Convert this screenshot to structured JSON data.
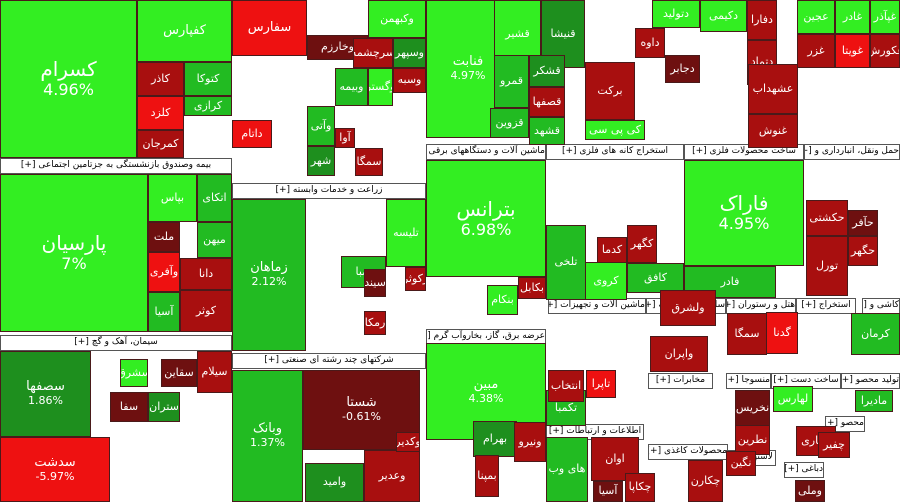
{
  "palette": {
    "up_strong": "#33ee22",
    "up": "#22bb22",
    "up_dim": "#1e8f1e",
    "flat": "#3a2a2a",
    "down_dim": "#6e1010",
    "down": "#a80f0f",
    "down_strong": "#ee1111"
  },
  "sectors": [
    {
      "label": "بیمه وصندوق بازنشستگی به جزتامین اجتماعی [+]"
    },
    {
      "label": "زراعت و خدمات وابسته [+]"
    },
    {
      "label": "ماشین آلات و دستگاههای برقی [+]"
    },
    {
      "label": "استخراج کانه های فلزی [+]"
    },
    {
      "label": "ساخت محصولات فلزی [+]"
    },
    {
      "label": "حمل ونقل، انبارداری و [+]"
    },
    {
      "label": "سیمان، آهک و گچ [+]"
    },
    {
      "label": "شرکتهای چند رشته ای صنعتی [+]"
    },
    {
      "label": "عرضه برق، گاز، بخاروآب گرم [+]"
    },
    {
      "label": "ماشین آلات و تجهیزات [+]"
    },
    {
      "label": "سایر واسطه گریه [+]"
    },
    {
      "label": "هتل و رستوران [+]"
    },
    {
      "label": "استخراج [+]"
    },
    {
      "label": "کاشی و [+]"
    },
    {
      "label": "مخابرات [+]"
    },
    {
      "label": "منسوجا [+]"
    },
    {
      "label": "ساخت دست [+]"
    },
    {
      "label": "تولید محصو [+]"
    },
    {
      "label": "اطلاعات و ارتباطات [+]"
    },
    {
      "label": "محصولات کاغذی [+]"
    },
    {
      "label": "لاستیک [+]"
    },
    {
      "label": "محصو [+]"
    },
    {
      "label": "دباغی [+]"
    }
  ],
  "tiles": [
    {
      "name": "کسرام",
      "pct": "4.96%",
      "tone": "up_strong"
    },
    {
      "name": "کفپارس",
      "pct": "",
      "tone": "up_strong"
    },
    {
      "name": "کاذر",
      "pct": "",
      "tone": "down"
    },
    {
      "name": "کتوکا",
      "pct": "",
      "tone": "up"
    },
    {
      "name": "کلزد",
      "pct": "",
      "tone": "down_strong"
    },
    {
      "name": "کرازی",
      "pct": "",
      "tone": "up"
    },
    {
      "name": "کمرجان",
      "pct": "",
      "tone": "down"
    },
    {
      "name": "پارسیان",
      "pct": "7%",
      "tone": "up_strong"
    },
    {
      "name": "اتکای",
      "pct": "",
      "tone": "up"
    },
    {
      "name": "بپاس",
      "pct": "",
      "tone": "up_strong"
    },
    {
      "name": "ملت",
      "pct": "",
      "tone": "down_dim"
    },
    {
      "name": "میهن",
      "pct": "",
      "tone": "up"
    },
    {
      "name": "وآفری",
      "pct": "",
      "tone": "down_strong"
    },
    {
      "name": "دانا",
      "pct": "",
      "tone": "down"
    },
    {
      "name": "آسیا",
      "pct": "",
      "tone": "up"
    },
    {
      "name": "کوثر",
      "pct": "",
      "tone": "down"
    },
    {
      "name": "سفارس",
      "pct": "",
      "tone": "down_strong"
    },
    {
      "name": "وکبهمن",
      "pct": "",
      "tone": "up_strong"
    },
    {
      "name": "وخارزم",
      "pct": "",
      "tone": "down_dim"
    },
    {
      "name": "سرچشمه",
      "pct": "",
      "tone": "down"
    },
    {
      "name": "وسپهر",
      "pct": "",
      "tone": "up_dim"
    },
    {
      "name": "وبیمه",
      "pct": "",
      "tone": "up"
    },
    {
      "name": "وگستر",
      "pct": "",
      "tone": "up_strong"
    },
    {
      "name": "وسبه",
      "pct": "",
      "tone": "down"
    },
    {
      "name": "داتام",
      "pct": "",
      "tone": "down_strong"
    },
    {
      "name": "وآتی",
      "pct": "",
      "tone": "up"
    },
    {
      "name": "شهر",
      "pct": "",
      "tone": "up_dim"
    },
    {
      "name": "آوا",
      "pct": "",
      "tone": "down"
    },
    {
      "name": "سمگا",
      "pct": "",
      "tone": "down"
    },
    {
      "name": "زماهان",
      "pct": "2.12%",
      "tone": "up"
    },
    {
      "name": "تلیسه",
      "pct": "",
      "tone": "up_strong"
    },
    {
      "name": "صبا",
      "pct": "",
      "tone": "up"
    },
    {
      "name": "سیند",
      "pct": "",
      "tone": "down_dim"
    },
    {
      "name": "زکوثر",
      "pct": "",
      "tone": "down"
    },
    {
      "name": "رمکا",
      "pct": "",
      "tone": "down"
    },
    {
      "name": "فنابت",
      "pct": "4.97%",
      "tone": "up_strong"
    },
    {
      "name": "قشیر",
      "pct": "",
      "tone": "up_strong"
    },
    {
      "name": "قنیشا",
      "pct": "",
      "tone": "up_dim"
    },
    {
      "name": "قشکر",
      "pct": "",
      "tone": "up_dim"
    },
    {
      "name": "قصفها",
      "pct": "",
      "tone": "down"
    },
    {
      "name": "قزوین",
      "pct": "",
      "tone": "up"
    },
    {
      "name": "قشهد",
      "pct": "",
      "tone": "up"
    },
    {
      "name": "قمرو",
      "pct": "",
      "tone": "up"
    },
    {
      "name": "برکت",
      "pct": "",
      "tone": "down"
    },
    {
      "name": "کی پی سی",
      "pct": "",
      "tone": "up_strong"
    },
    {
      "name": "دتولید",
      "pct": "",
      "tone": "up_strong"
    },
    {
      "name": "دکیمی",
      "pct": "",
      "tone": "up_strong"
    },
    {
      "name": "دفارا",
      "pct": "",
      "tone": "down"
    },
    {
      "name": "داوه",
      "pct": "",
      "tone": "down"
    },
    {
      "name": "دجابر",
      "pct": "",
      "tone": "down_dim"
    },
    {
      "name": "دتماد",
      "pct": "",
      "tone": "down"
    },
    {
      "name": "عجین",
      "pct": "",
      "tone": "up_strong"
    },
    {
      "name": "غادر",
      "pct": "",
      "tone": "up_strong"
    },
    {
      "name": "غپآذر",
      "pct": "",
      "tone": "up_strong"
    },
    {
      "name": "غزر",
      "pct": "",
      "tone": "down"
    },
    {
      "name": "غویتا",
      "pct": "",
      "tone": "down_strong"
    },
    {
      "name": "غکورش",
      "pct": "",
      "tone": "down"
    },
    {
      "name": "عشهداب",
      "pct": "",
      "tone": "down"
    },
    {
      "name": "غنوش",
      "pct": "",
      "tone": "down"
    },
    {
      "name": "بترانس",
      "pct": "6.98%",
      "tone": "up_strong"
    },
    {
      "name": "بکابل",
      "pct": "",
      "tone": "down"
    },
    {
      "name": "بنکام",
      "pct": "",
      "tone": "up_strong"
    },
    {
      "name": "تلخی",
      "pct": "",
      "tone": "up"
    },
    {
      "name": "کدما",
      "pct": "",
      "tone": "down"
    },
    {
      "name": "کگهر",
      "pct": "",
      "tone": "down"
    },
    {
      "name": "کروی",
      "pct": "",
      "tone": "up_strong"
    },
    {
      "name": "کافق",
      "pct": "",
      "tone": "up"
    },
    {
      "name": "فاراک",
      "pct": "4.95%",
      "tone": "up_strong"
    },
    {
      "name": "فادر",
      "pct": "",
      "tone": "up"
    },
    {
      "name": "حکشتی",
      "pct": "",
      "tone": "down"
    },
    {
      "name": "حآفر",
      "pct": "",
      "tone": "down_dim"
    },
    {
      "name": "حگهر",
      "pct": "",
      "tone": "down"
    },
    {
      "name": "تورل",
      "pct": "",
      "tone": "down"
    },
    {
      "name": "سصفها",
      "pct": "1.86%",
      "tone": "up_dim"
    },
    {
      "name": "سشرق",
      "pct": "",
      "tone": "up_strong"
    },
    {
      "name": "سقاین",
      "pct": "",
      "tone": "down_dim"
    },
    {
      "name": "سیلام",
      "pct": "",
      "tone": "down"
    },
    {
      "name": "ستران",
      "pct": "",
      "tone": "up_dim"
    },
    {
      "name": "سفا",
      "pct": "",
      "tone": "down_dim"
    },
    {
      "name": "سدشت",
      "pct": "-5.97%",
      "tone": "down_strong"
    },
    {
      "name": "وبانک",
      "pct": "1.37%",
      "tone": "up"
    },
    {
      "name": "شستا",
      "pct": "-0.61%",
      "tone": "down_dim"
    },
    {
      "name": "وامید",
      "pct": "",
      "tone": "up_dim"
    },
    {
      "name": "وعدیر",
      "pct": "",
      "tone": "down"
    },
    {
      "name": "وکدیر",
      "pct": "",
      "tone": "down"
    },
    {
      "name": "مبین",
      "pct": "4.38%",
      "tone": "up_strong"
    },
    {
      "name": "بهرام",
      "pct": "",
      "tone": "up_dim"
    },
    {
      "name": "بمپنا",
      "pct": "",
      "tone": "down"
    },
    {
      "name": "ونیرو",
      "pct": "",
      "tone": "down"
    },
    {
      "name": "تکمبا",
      "pct": "",
      "tone": "up"
    },
    {
      "name": "انتخاب",
      "pct": "",
      "tone": "down"
    },
    {
      "name": "تاپرا",
      "pct": "",
      "tone": "down_strong"
    },
    {
      "name": "ولشرق",
      "pct": "",
      "tone": "down"
    },
    {
      "name": "واپران",
      "pct": "",
      "tone": "down"
    },
    {
      "name": "سمگا",
      "pct": "",
      "tone": "down"
    },
    {
      "name": "گدنا",
      "pct": "",
      "tone": "down_strong"
    },
    {
      "name": "کرمان",
      "pct": "",
      "tone": "up"
    },
    {
      "name": "لهارس",
      "pct": "",
      "tone": "up_strong"
    },
    {
      "name": "مادیرا",
      "pct": "",
      "tone": "up"
    },
    {
      "name": "حفاری",
      "pct": "",
      "tone": "down"
    },
    {
      "name": "چفیر",
      "pct": "",
      "tone": "down"
    },
    {
      "name": "وملی",
      "pct": "",
      "tone": "down_dim"
    },
    {
      "name": "های وب",
      "pct": "",
      "tone": "up"
    },
    {
      "name": "اوان",
      "pct": "",
      "tone": "down"
    },
    {
      "name": "آسیا",
      "pct": "",
      "tone": "down_dim"
    },
    {
      "name": "چکاپا",
      "pct": "",
      "tone": "down"
    },
    {
      "name": "چکارن",
      "pct": "",
      "tone": "down"
    },
    {
      "name": "نخریس",
      "pct": "",
      "tone": "down_dim"
    },
    {
      "name": "نطرین",
      "pct": "",
      "tone": "down"
    },
    {
      "name": "نگین",
      "pct": "",
      "tone": "down"
    }
  ]
}
